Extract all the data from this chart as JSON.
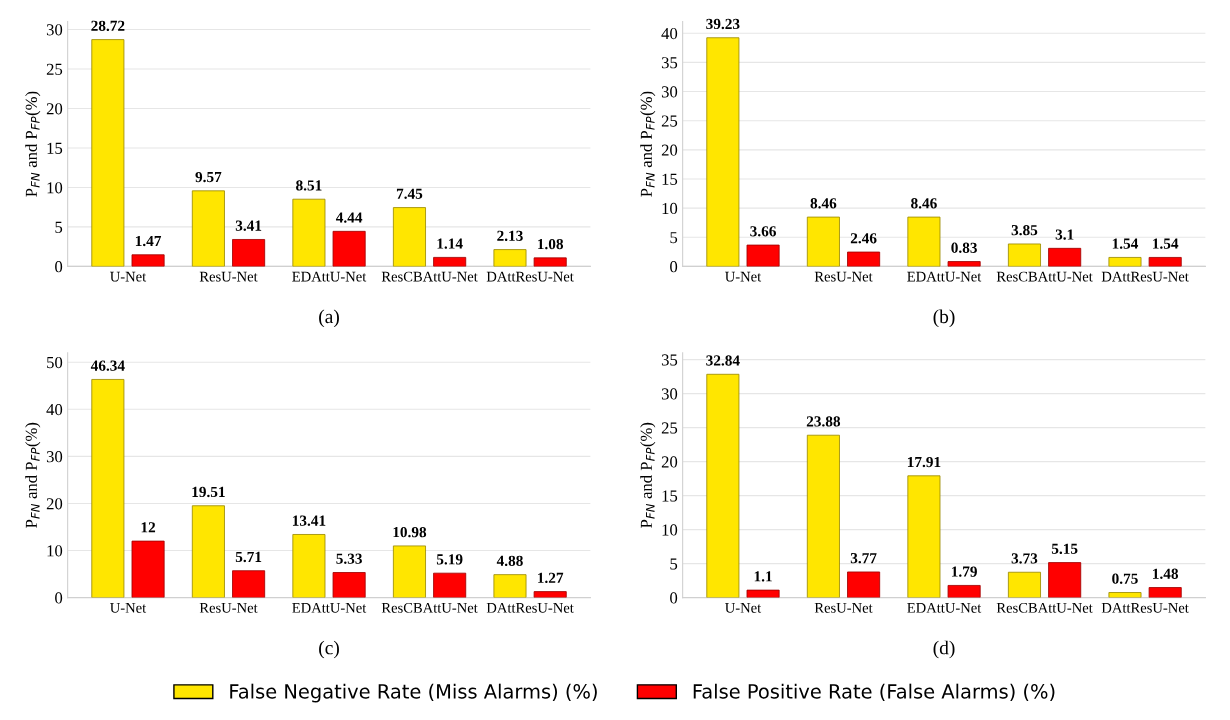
{
  "chart_data": [
    {
      "type": "bar",
      "xlabel": "(a)",
      "ylabel": "P$_{FN}$ and P$_{FP}$(%)",
      "categories": [
        "U-Net",
        "ResU-Net",
        "EDAttU-Net",
        "ResCBAttU-Net",
        "DAttResU-Net"
      ],
      "series": [
        {
          "name": "False Negative Rate (Miss Alarms) (%)",
          "color": "#ffe600",
          "values": [
            28.72,
            9.57,
            8.51,
            7.45,
            2.13
          ]
        },
        {
          "name": "False Positive Rate (False Alarms) (%)",
          "color": "#ff0000",
          "values": [
            1.47,
            3.41,
            4.44,
            1.14,
            1.08
          ]
        }
      ],
      "ylim": [
        0,
        31
      ],
      "yticks": [
        0,
        5,
        10,
        15,
        20,
        25,
        30
      ],
      "grid": "y",
      "data_labels": true,
      "legend": "bottom"
    },
    {
      "type": "bar",
      "xlabel": "(b)",
      "ylabel": "P$_{FN}$ and P$_{FP}$(%)",
      "categories": [
        "U-Net",
        "ResU-Net",
        "EDAttU-Net",
        "ResCBAttU-Net",
        "DAttResU-Net"
      ],
      "series": [
        {
          "color": "#ffe600",
          "values": [
            39.23,
            8.46,
            8.46,
            3.85,
            1.54
          ]
        },
        {
          "color": "#ff0000",
          "values": [
            3.66,
            2.46,
            0.83,
            3.1,
            1.54
          ]
        }
      ],
      "ylim": [
        0,
        42
      ],
      "yticks": [
        0,
        5,
        10,
        15,
        20,
        25,
        30,
        35,
        40
      ],
      "grid": "y",
      "data_labels": true
    },
    {
      "type": "bar",
      "xlabel": "(c)",
      "ylabel": "P$_{FN}$ and P$_{FP}$(%)",
      "categories": [
        "U-Net",
        "ResU-Net",
        "EDAttU-Net",
        "ResCBAttU-Net",
        "DAttResU-Net"
      ],
      "series": [
        {
          "color": "#ffe600",
          "values": [
            46.34,
            19.51,
            13.41,
            10.98,
            4.88
          ]
        },
        {
          "color": "#ff0000",
          "values": [
            12,
            5.71,
            5.33,
            5.19,
            1.27
          ]
        }
      ],
      "ylim": [
        0,
        52
      ],
      "yticks": [
        0,
        10,
        20,
        30,
        40,
        50
      ],
      "grid": "y",
      "data_labels": true
    },
    {
      "type": "bar",
      "xlabel": "(d)",
      "ylabel": "P$_{FN}$ and P$_{FP}$(%)",
      "categories": [
        "U-Net",
        "ResU-Net",
        "EDAttU-Net",
        "ResCBAttU-Net",
        "DAttResU-Net"
      ],
      "series": [
        {
          "color": "#ffe600",
          "values": [
            32.84,
            23.88,
            17.91,
            3.73,
            0.75
          ]
        },
        {
          "color": "#ff0000",
          "values": [
            1.1,
            3.77,
            1.79,
            5.15,
            1.48
          ]
        }
      ],
      "ylim": [
        0,
        36
      ],
      "yticks": [
        0,
        5,
        10,
        15,
        20,
        25,
        30,
        35
      ],
      "grid": "y",
      "data_labels": true
    }
  ]
}
